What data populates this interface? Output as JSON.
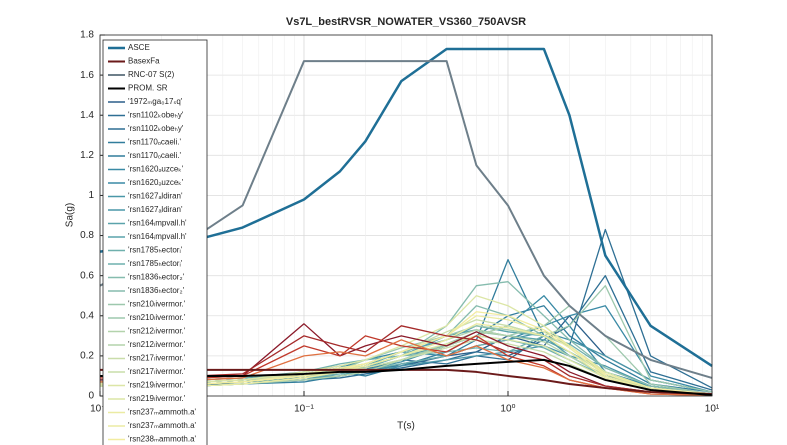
{
  "chart_data": {
    "type": "line",
    "title": "Vs7L_bestRVSR_NOWATER_VS360_750AVSR",
    "x_label": "T(s)",
    "y_label": "Sa(g)",
    "xscale": "log",
    "grid": true,
    "minor_grid": true,
    "legend": "northwest",
    "xlim": [
      0.01,
      10
    ],
    "ylim": [
      0,
      1.8
    ],
    "xticks": [
      {
        "value": 0.01,
        "label": "10⁻²"
      },
      {
        "value": 0.1,
        "label": "10⁻¹"
      },
      {
        "value": 1,
        "label": "10⁰"
      },
      {
        "value": 10,
        "label": "10¹"
      }
    ],
    "yticks": [
      0,
      0.2,
      0.4,
      0.6,
      0.8,
      1,
      1.2,
      1.4,
      1.6,
      1.8
    ],
    "x": [
      0.01,
      0.03,
      0.05,
      0.1,
      0.15,
      0.2,
      0.3,
      0.5,
      0.7,
      1,
      1.5,
      2,
      3,
      5,
      10
    ],
    "series": [
      {
        "name": "'1972ₘga₀17ₛq'",
        "color": "#2b5f8a",
        "values": [
          0.07,
          0.07,
          0.08,
          0.1,
          0.12,
          0.14,
          0.15,
          0.2,
          0.22,
          0.3,
          0.25,
          0.4,
          0.2,
          0.08,
          0.02
        ]
      },
      {
        "name": "'rsn1102ₖobeₕy'",
        "color": "#2e6f94",
        "values": [
          0.06,
          0.06,
          0.07,
          0.09,
          0.1,
          0.13,
          0.18,
          0.16,
          0.2,
          0.18,
          0.3,
          0.25,
          0.83,
          0.2,
          0.04
        ]
      },
      {
        "name": "'rsn1102ₖobeₕy'",
        "color": "#2e6f94",
        "values": [
          0.05,
          0.06,
          0.06,
          0.08,
          0.09,
          0.11,
          0.14,
          0.18,
          0.22,
          0.2,
          0.28,
          0.35,
          0.6,
          0.12,
          0.03
        ]
      },
      {
        "name": "'rsn1170ₒcaeli.'",
        "color": "#317d9c",
        "values": [
          0.05,
          0.05,
          0.06,
          0.07,
          0.1,
          0.12,
          0.16,
          0.2,
          0.28,
          0.68,
          0.3,
          0.2,
          0.1,
          0.05,
          0.01
        ]
      },
      {
        "name": "'rsn1170ₒcaeli.'",
        "color": "#317d9c",
        "values": [
          0.06,
          0.06,
          0.07,
          0.09,
          0.12,
          0.1,
          0.15,
          0.22,
          0.3,
          0.4,
          0.45,
          0.3,
          0.18,
          0.06,
          0.02
        ]
      },
      {
        "name": "'rsn1620ₔuzceₖ'",
        "color": "#3a8aa5",
        "values": [
          0.07,
          0.07,
          0.08,
          0.1,
          0.13,
          0.15,
          0.2,
          0.25,
          0.3,
          0.35,
          0.5,
          0.35,
          0.12,
          0.05,
          0.01
        ]
      },
      {
        "name": "'rsn1620ₔuzceₖ'",
        "color": "#3a8aa5",
        "values": [
          0.08,
          0.08,
          0.09,
          0.11,
          0.14,
          0.18,
          0.22,
          0.2,
          0.25,
          0.28,
          0.35,
          0.4,
          0.45,
          0.1,
          0.02
        ]
      },
      {
        "name": "'rsn1627ₐldiran'",
        "color": "#4a97a8",
        "values": [
          0.06,
          0.06,
          0.07,
          0.09,
          0.1,
          0.12,
          0.15,
          0.18,
          0.2,
          0.22,
          0.25,
          0.2,
          0.15,
          0.05,
          0.01
        ]
      },
      {
        "name": "'rsn1627ₐldiran'",
        "color": "#4a97a8",
        "values": [
          0.05,
          0.05,
          0.06,
          0.08,
          0.1,
          0.13,
          0.17,
          0.25,
          0.3,
          0.28,
          0.32,
          0.28,
          0.2,
          0.08,
          0.02
        ]
      },
      {
        "name": "'rsn164ᵢmpvall.h'",
        "color": "#5aa3ab",
        "values": [
          0.07,
          0.07,
          0.08,
          0.12,
          0.15,
          0.14,
          0.2,
          0.3,
          0.33,
          0.3,
          0.28,
          0.22,
          0.12,
          0.04,
          0.01
        ]
      },
      {
        "name": "'rsn164ᵢmpvall.h'",
        "color": "#5aa3ab",
        "values": [
          0.06,
          0.06,
          0.07,
          0.1,
          0.12,
          0.15,
          0.22,
          0.28,
          0.35,
          0.32,
          0.3,
          0.2,
          0.1,
          0.04,
          0.01
        ]
      },
      {
        "name": "'rsn1785ₕectorᵢ'",
        "color": "#6fb0ad",
        "values": [
          0.08,
          0.08,
          0.09,
          0.12,
          0.16,
          0.18,
          0.2,
          0.22,
          0.24,
          0.22,
          0.3,
          0.26,
          0.14,
          0.05,
          0.01
        ]
      },
      {
        "name": "'rsn1785ₕectorᵢ'",
        "color": "#6fb0ad",
        "values": [
          0.05,
          0.05,
          0.06,
          0.09,
          0.11,
          0.13,
          0.16,
          0.2,
          0.25,
          0.28,
          0.24,
          0.18,
          0.1,
          0.03,
          0.01
        ]
      },
      {
        "name": "'rsn1836ₕector₂'",
        "color": "#86bcae",
        "values": [
          0.06,
          0.06,
          0.07,
          0.1,
          0.14,
          0.16,
          0.22,
          0.3,
          0.45,
          0.4,
          0.3,
          0.25,
          0.12,
          0.04,
          0.01
        ]
      },
      {
        "name": "'rsn1836ₕector₂'",
        "color": "#86bcae",
        "values": [
          0.07,
          0.07,
          0.08,
          0.11,
          0.13,
          0.15,
          0.2,
          0.35,
          0.55,
          0.57,
          0.4,
          0.28,
          0.14,
          0.05,
          0.01
        ]
      },
      {
        "name": "'rsn210ₗivermor.'",
        "color": "#9dc8ad",
        "values": [
          0.06,
          0.06,
          0.07,
          0.1,
          0.12,
          0.14,
          0.18,
          0.26,
          0.32,
          0.3,
          0.35,
          0.45,
          0.3,
          0.06,
          0.01
        ]
      },
      {
        "name": "'rsn210ₗivermor.'",
        "color": "#9dc8ad",
        "values": [
          0.07,
          0.07,
          0.08,
          0.1,
          0.13,
          0.18,
          0.24,
          0.3,
          0.35,
          0.33,
          0.3,
          0.35,
          0.55,
          0.08,
          0.02
        ]
      },
      {
        "name": "'rsn212ₗivermor.'",
        "color": "#b3d3ac",
        "values": [
          0.05,
          0.05,
          0.06,
          0.08,
          0.1,
          0.12,
          0.18,
          0.25,
          0.3,
          0.35,
          0.3,
          0.25,
          0.12,
          0.04,
          0.01
        ]
      },
      {
        "name": "'rsn212ₗivermor.'",
        "color": "#b3d3ac",
        "values": [
          0.06,
          0.06,
          0.07,
          0.1,
          0.12,
          0.15,
          0.2,
          0.28,
          0.33,
          0.3,
          0.27,
          0.2,
          0.1,
          0.03,
          0.01
        ]
      },
      {
        "name": "'rsn217ₗivermor.'",
        "color": "#c9ddaa",
        "values": [
          0.07,
          0.07,
          0.08,
          0.11,
          0.14,
          0.16,
          0.22,
          0.32,
          0.38,
          0.35,
          0.3,
          0.22,
          0.11,
          0.03,
          0.01
        ]
      },
      {
        "name": "'rsn217ₗivermor.'",
        "color": "#c9ddaa",
        "values": [
          0.05,
          0.05,
          0.06,
          0.09,
          0.12,
          0.14,
          0.18,
          0.24,
          0.28,
          0.26,
          0.22,
          0.16,
          0.08,
          0.03,
          0.01
        ]
      },
      {
        "name": "'rsn219ₗivermor.'",
        "color": "#dce6a6",
        "values": [
          0.06,
          0.06,
          0.07,
          0.1,
          0.13,
          0.15,
          0.2,
          0.26,
          0.3,
          0.28,
          0.25,
          0.18,
          0.09,
          0.03,
          0.01
        ]
      },
      {
        "name": "'rsn219ₗivermor.'",
        "color": "#dce6a6",
        "values": [
          0.07,
          0.07,
          0.08,
          0.12,
          0.15,
          0.18,
          0.25,
          0.35,
          0.5,
          0.45,
          0.35,
          0.25,
          0.12,
          0.04,
          0.01
        ]
      },
      {
        "name": "'rsn237ₘammoth.a'",
        "color": "#ebeba3",
        "values": [
          0.06,
          0.06,
          0.07,
          0.11,
          0.14,
          0.16,
          0.22,
          0.3,
          0.4,
          0.38,
          0.32,
          0.24,
          0.1,
          0.03,
          0.01
        ]
      },
      {
        "name": "'rsn237ₘammoth.a'",
        "color": "#ebeba3",
        "values": [
          0.05,
          0.05,
          0.06,
          0.09,
          0.12,
          0.15,
          0.2,
          0.28,
          0.36,
          0.34,
          0.3,
          0.22,
          0.09,
          0.03,
          0.01
        ]
      },
      {
        "name": "'rsn238ₘammoth.a'",
        "color": "#f2eca0",
        "values": [
          0.06,
          0.06,
          0.07,
          0.1,
          0.13,
          0.16,
          0.22,
          0.3,
          0.42,
          0.4,
          0.33,
          0.25,
          0.11,
          0.04,
          0.01
        ]
      },
      {
        "color": "#8b1a2a",
        "values": [
          0.08,
          0.09,
          0.1,
          0.36,
          0.2,
          0.25,
          0.3,
          0.25,
          0.32,
          0.25,
          0.2,
          0.12,
          0.05,
          0.02,
          0.005
        ]
      },
      {
        "color": "#a52a2a",
        "values": [
          0.1,
          0.1,
          0.11,
          0.3,
          0.25,
          0.22,
          0.35,
          0.3,
          0.28,
          0.22,
          0.18,
          0.1,
          0.05,
          0.02,
          0.005
        ]
      },
      {
        "color": "#c0392b",
        "values": [
          0.09,
          0.09,
          0.1,
          0.25,
          0.2,
          0.3,
          0.25,
          0.22,
          0.3,
          0.2,
          0.15,
          0.08,
          0.04,
          0.01,
          0.003
        ]
      },
      {
        "color": "#e07040",
        "values": [
          0.07,
          0.08,
          0.09,
          0.2,
          0.22,
          0.2,
          0.28,
          0.2,
          0.25,
          0.18,
          0.14,
          0.08,
          0.04,
          0.01,
          0.003
        ]
      }
    ],
    "reference_series": [
      {
        "name": "ASCE",
        "color": "#1f6f96",
        "width": 2.5,
        "values": [
          0.72,
          0.78,
          0.84,
          0.98,
          1.12,
          1.27,
          1.57,
          1.73,
          1.73,
          1.73,
          1.73,
          1.4,
          0.7,
          0.35,
          0.15
        ]
      },
      {
        "name": "BasexFa",
        "color": "#6b1a1a",
        "width": 2,
        "values": [
          0.13,
          0.13,
          0.13,
          0.13,
          0.13,
          0.13,
          0.13,
          0.13,
          0.12,
          0.1,
          0.08,
          0.06,
          0.04,
          0.02,
          0.01
        ]
      },
      {
        "name": "RNC-07 S(2)",
        "color": "#6e7f8a",
        "width": 2,
        "values": [
          0.55,
          0.8,
          0.95,
          1.67,
          1.67,
          1.67,
          1.67,
          1.67,
          1.15,
          0.95,
          0.6,
          0.45,
          0.3,
          0.18,
          0.09
        ]
      },
      {
        "name": "PROM. SR",
        "color": "#000000",
        "width": 2,
        "values": [
          0.1,
          0.1,
          0.1,
          0.11,
          0.12,
          0.12,
          0.13,
          0.15,
          0.16,
          0.17,
          0.18,
          0.15,
          0.08,
          0.03,
          0.005
        ]
      }
    ]
  }
}
